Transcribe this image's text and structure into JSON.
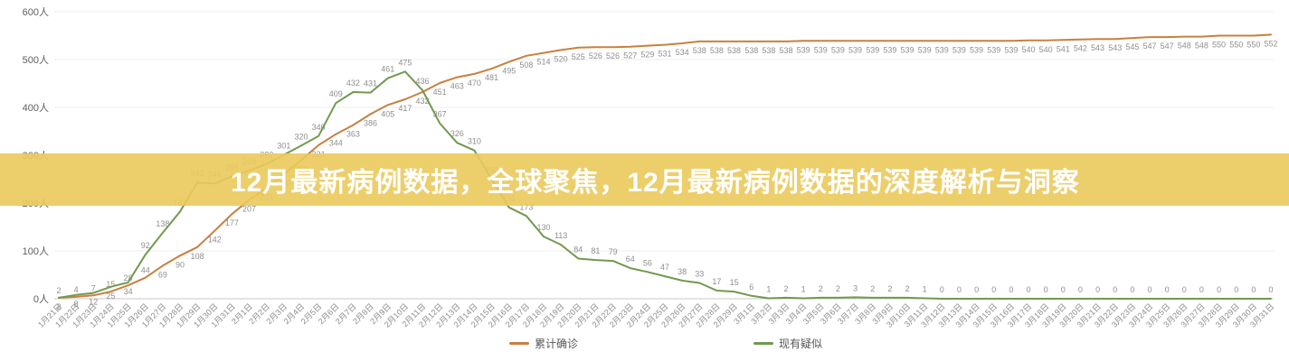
{
  "banner": {
    "title": "12月最新病例数据，全球聚焦，12月最新病例数据的深度解析与洞察",
    "bg_color": "#eac95c",
    "text_color": "#ffffff"
  },
  "chart_data": {
    "type": "line",
    "title": "",
    "xlabel": "",
    "ylabel": "",
    "ylim": [
      0,
      600
    ],
    "grid": true,
    "legend_position": "bottom",
    "y_tick_labels": [
      "600人",
      "500人",
      "400人",
      "300人",
      "200人",
      "100人",
      "0人"
    ],
    "x": [
      "1月21日",
      "1月22日",
      "1月23日",
      "1月24日",
      "1月25日",
      "1月26日",
      "1月27日",
      "1月28日",
      "1月29日",
      "1月30日",
      "1月31日",
      "2月1日",
      "2月2日",
      "2月3日",
      "2月4日",
      "2月5日",
      "2月6日",
      "2月7日",
      "2月8日",
      "2月9日",
      "2月10日",
      "2月11日",
      "2月12日",
      "2月13日",
      "2月14日",
      "2月15日",
      "2月16日",
      "2月17日",
      "2月18日",
      "2月19日",
      "2月20日",
      "2月21日",
      "2月22日",
      "2月23日",
      "2月24日",
      "2月25日",
      "2月26日",
      "2月27日",
      "2月28日",
      "2月29日",
      "3月1日",
      "3月2日",
      "3月3日",
      "3月4日",
      "3月5日",
      "3月6日",
      "3月7日",
      "3月8日",
      "3月9日",
      "3月10日",
      "3月11日",
      "3月12日",
      "3月13日",
      "3月14日",
      "3月15日",
      "3月16日",
      "3月17日",
      "3月18日",
      "3月19日",
      "3月20日",
      "3月21日",
      "3月22日",
      "3月23日",
      "3月24日",
      "3月25日",
      "3月26日",
      "3月27日",
      "3月28日",
      "3月29日",
      "3月30日",
      "3月31日"
    ],
    "series": [
      {
        "name": "累计确诊",
        "color": "#c8803f",
        "values": [
          2,
          4,
          7,
          15,
          28,
          44,
          69,
          90,
          108,
          142,
          177,
          207,
          231,
          260,
          290,
          321,
          344,
          363,
          386,
          405,
          417,
          432,
          451,
          463,
          470,
          481,
          495,
          508,
          514,
          520,
          525,
          526,
          526,
          527,
          529,
          531,
          534,
          538,
          538,
          538,
          538,
          538,
          538,
          539,
          539,
          539,
          539,
          539,
          539,
          539,
          539,
          539,
          539,
          539,
          539,
          539,
          540,
          540,
          541,
          542,
          543,
          543,
          545,
          547,
          547,
          548,
          548,
          550,
          550,
          550,
          552
        ]
      },
      {
        "name": "现有疑似",
        "color": "#72994e",
        "values": [
          2,
          8,
          12,
          25,
          34,
          92,
          138,
          182,
          243,
          241,
          256,
          268,
          282,
          301,
          320,
          340,
          409,
          432,
          431,
          461,
          475,
          436,
          367,
          326,
          310,
          250,
          191,
          173,
          130,
          113,
          84,
          81,
          79,
          64,
          56,
          47,
          38,
          33,
          17,
          15,
          6,
          1,
          2,
          1,
          2,
          2,
          3,
          2,
          2,
          2,
          1,
          0,
          0,
          0,
          0,
          0,
          0,
          0,
          0,
          0,
          0,
          0,
          0,
          0,
          0,
          0,
          0,
          0,
          0,
          0,
          0
        ]
      }
    ]
  },
  "colors": {
    "gridline": "#ededed",
    "axis_line": "#c9c9c9",
    "tick_text": "#5e5e5e",
    "date_text": "#8c8c8c",
    "data_label": "#8f8f8f"
  }
}
